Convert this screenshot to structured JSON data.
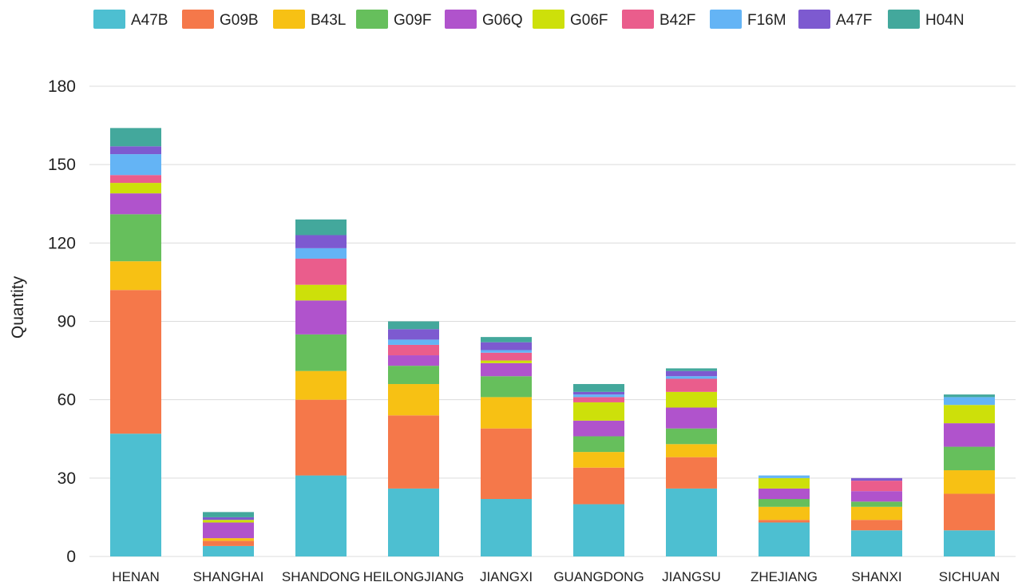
{
  "chart_data": {
    "type": "bar",
    "stacked": true,
    "ylabel": "Quantity",
    "xlabel": "",
    "ylim": [
      0,
      180
    ],
    "yticks": [
      0,
      30,
      60,
      90,
      120,
      150,
      180
    ],
    "grid": true,
    "legend_position": "top",
    "categories": [
      "HENAN",
      "SHANGHAI",
      "SHANDONG",
      "HEILONGJIANG",
      "JIANGXI",
      "GUANGDONG",
      "JIANGSU",
      "ZHEJIANG",
      "SHANXI",
      "SICHUAN"
    ],
    "series": [
      {
        "name": "A47B",
        "color": "#4dbfd1",
        "values": [
          47,
          4,
          31,
          26,
          22,
          20,
          26,
          13,
          10,
          10
        ]
      },
      {
        "name": "G09B",
        "color": "#f5784a",
        "values": [
          55,
          2,
          29,
          28,
          27,
          14,
          12,
          1,
          4,
          14
        ]
      },
      {
        "name": "B43L",
        "color": "#f7c114",
        "values": [
          11,
          1,
          11,
          12,
          12,
          6,
          5,
          5,
          5,
          9
        ]
      },
      {
        "name": "G09F",
        "color": "#66bf5c",
        "values": [
          18,
          0,
          14,
          7,
          8,
          6,
          6,
          3,
          2,
          9
        ]
      },
      {
        "name": "G06Q",
        "color": "#b053cc",
        "values": [
          8,
          6,
          13,
          4,
          5,
          6,
          8,
          4,
          4,
          9
        ]
      },
      {
        "name": "G06F",
        "color": "#cde00a",
        "values": [
          4,
          1,
          6,
          0,
          1,
          7,
          6,
          4,
          0,
          7
        ]
      },
      {
        "name": "B42F",
        "color": "#ea5d8c",
        "values": [
          3,
          0,
          10,
          4,
          3,
          2,
          5,
          0,
          4,
          0
        ]
      },
      {
        "name": "F16M",
        "color": "#64b4f5",
        "values": [
          8,
          0,
          4,
          2,
          1,
          1,
          1,
          1,
          0,
          3
        ]
      },
      {
        "name": "A47F",
        "color": "#7d5ad0",
        "values": [
          3,
          1,
          5,
          4,
          3,
          1,
          2,
          0,
          1,
          0
        ]
      },
      {
        "name": "H04N",
        "color": "#43a89c",
        "values": [
          7,
          2,
          6,
          3,
          2,
          3,
          1,
          0,
          0,
          1
        ]
      }
    ]
  }
}
